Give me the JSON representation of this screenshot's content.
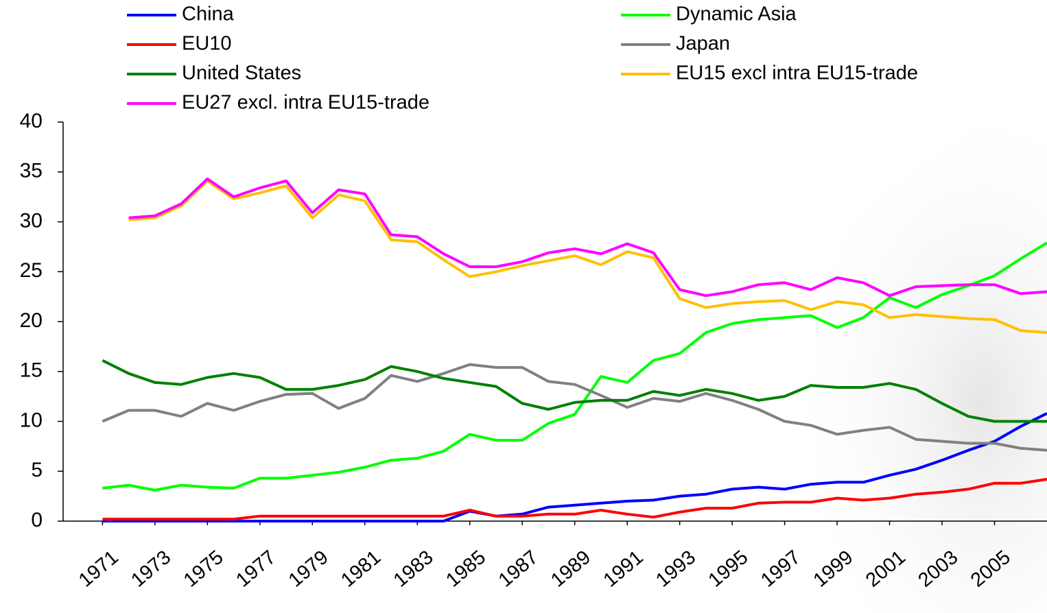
{
  "chart_data": {
    "type": "line",
    "x": [
      1971,
      1972,
      1973,
      1974,
      1975,
      1976,
      1977,
      1978,
      1979,
      1980,
      1981,
      1982,
      1983,
      1984,
      1985,
      1986,
      1987,
      1988,
      1989,
      1990,
      1991,
      1992,
      1993,
      1994,
      1995,
      1996,
      1997,
      1998,
      1999,
      2000,
      2001,
      2002,
      2003,
      2004,
      2005,
      2006,
      2007
    ],
    "xlim": [
      1969.5,
      2007
    ],
    "xticks": [
      1971,
      1973,
      1975,
      1977,
      1979,
      1981,
      1983,
      1985,
      1987,
      1989,
      1991,
      1993,
      1995,
      1997,
      1999,
      2001,
      2003,
      2005
    ],
    "ylim": [
      0,
      40
    ],
    "yticks": [
      0,
      5,
      10,
      15,
      20,
      25,
      30,
      35,
      40
    ],
    "series": [
      {
        "name": "China",
        "color": "#0000ff",
        "values": [
          0,
          0,
          0,
          0,
          0,
          0,
          0,
          0,
          0,
          0,
          0,
          0,
          0,
          0,
          1.0,
          0.5,
          0.7,
          1.4,
          1.6,
          1.8,
          2.0,
          2.1,
          2.5,
          2.7,
          3.2,
          3.4,
          3.2,
          3.7,
          3.9,
          3.9,
          4.6,
          5.2,
          6.1,
          7.1,
          8.0,
          9.5,
          10.8
        ]
      },
      {
        "name": "Dynamic Asia",
        "color": "#00ff00",
        "values": [
          3.3,
          3.6,
          3.1,
          3.6,
          3.4,
          3.3,
          4.3,
          4.3,
          4.6,
          4.9,
          5.4,
          6.1,
          6.3,
          7.0,
          8.7,
          8.1,
          8.1,
          9.8,
          10.7,
          14.5,
          13.9,
          16.1,
          16.8,
          18.9,
          19.8,
          20.2,
          20.4,
          20.6,
          19.4,
          20.4,
          22.4,
          21.4,
          22.7,
          23.6,
          24.6,
          26.3,
          27.9
        ]
      },
      {
        "name": "EU10",
        "color": "#ff0000",
        "values": [
          0.2,
          0.2,
          0.2,
          0.2,
          0.2,
          0.2,
          0.5,
          0.5,
          0.5,
          0.5,
          0.5,
          0.5,
          0.5,
          0.5,
          1.1,
          0.5,
          0.5,
          0.7,
          0.7,
          1.1,
          0.7,
          0.4,
          0.9,
          1.3,
          1.3,
          1.8,
          1.9,
          1.9,
          2.3,
          2.1,
          2.3,
          2.7,
          2.9,
          3.2,
          3.8,
          3.8,
          4.2
        ]
      },
      {
        "name": "Japan",
        "color": "#808080",
        "values": [
          10.0,
          11.1,
          11.1,
          10.5,
          11.8,
          11.1,
          12.0,
          12.7,
          12.8,
          11.3,
          12.3,
          14.6,
          14.0,
          14.8,
          15.7,
          15.4,
          15.4,
          14.0,
          13.7,
          12.6,
          11.4,
          12.3,
          12.0,
          12.8,
          12.1,
          11.2,
          10.0,
          9.6,
          8.7,
          9.1,
          9.4,
          8.2,
          8.0,
          7.8,
          7.8,
          7.3,
          7.1
        ]
      },
      {
        "name": "United States",
        "color": "#008000",
        "values": [
          16.1,
          14.8,
          13.9,
          13.7,
          14.4,
          14.8,
          14.4,
          13.2,
          13.2,
          13.6,
          14.2,
          15.5,
          15.0,
          14.3,
          13.9,
          13.5,
          11.8,
          11.2,
          11.9,
          12.1,
          12.1,
          13.0,
          12.6,
          13.2,
          12.8,
          12.1,
          12.5,
          13.6,
          13.4,
          13.4,
          13.8,
          13.2,
          11.8,
          10.5,
          10.0,
          10.0,
          10.0
        ]
      },
      {
        "name": "EU15 excl intra EU15-trade",
        "color": "#ffc000",
        "values": [
          null,
          30.2,
          30.4,
          31.6,
          34.1,
          32.3,
          32.9,
          33.6,
          30.4,
          32.7,
          32.1,
          28.2,
          28.0,
          26.2,
          24.5,
          25.0,
          25.6,
          26.1,
          26.6,
          25.7,
          27.0,
          26.4,
          22.3,
          21.4,
          21.8,
          22.0,
          22.1,
          21.2,
          22.0,
          21.7,
          20.4,
          20.7,
          20.5,
          20.3,
          20.2,
          19.1,
          18.9
        ]
      },
      {
        "name": "EU27 excl. intra EU15-trade",
        "color": "#ff00ff",
        "values": [
          null,
          30.4,
          30.6,
          31.8,
          34.3,
          32.5,
          33.4,
          34.1,
          30.9,
          33.2,
          32.8,
          28.7,
          28.5,
          26.8,
          25.5,
          25.5,
          26.0,
          26.9,
          27.3,
          26.8,
          27.8,
          26.9,
          23.2,
          22.6,
          23.0,
          23.7,
          23.9,
          23.2,
          24.4,
          23.9,
          22.6,
          23.5,
          23.6,
          23.7,
          23.7,
          22.8,
          23.0
        ]
      }
    ]
  }
}
